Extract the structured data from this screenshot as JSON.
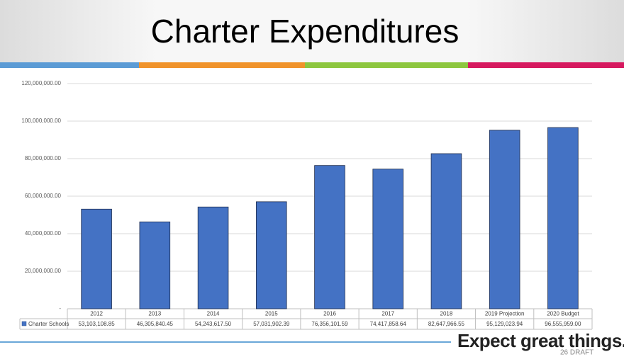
{
  "chart_data": {
    "type": "bar",
    "title": "Charter Expenditures",
    "categories": [
      "2012",
      "2013",
      "2014",
      "2015",
      "2016",
      "2017",
      "2018",
      "2019 Projection",
      "2020 Budget"
    ],
    "series": [
      {
        "name": "Charter Schools",
        "color": "#4472c4",
        "values": [
          53103108.85,
          46305840.45,
          54243617.5,
          57031902.39,
          76356101.59,
          74417858.64,
          82647966.55,
          95129023.94,
          96555959.0
        ],
        "value_labels": [
          "53,103,108.85",
          "46,305,840.45",
          "54,243,617.50",
          "57,031,902.39",
          "76,356,101.59",
          "74,417,858.64",
          "82,647,966.55",
          "95,129,023.94",
          "96,555,959.00"
        ]
      }
    ],
    "ylim": [
      0,
      120000000
    ],
    "yticks": [
      {
        "value": 0,
        "label": "-"
      },
      {
        "value": 20000000,
        "label": "20,000,000.00"
      },
      {
        "value": 40000000,
        "label": "40,000,000.00"
      },
      {
        "value": 60000000,
        "label": "60,000,000.00"
      },
      {
        "value": 80000000,
        "label": "80,000,000.00"
      },
      {
        "value": 100000000,
        "label": "100,000,000.00"
      },
      {
        "value": 120000000,
        "label": "120,000,000.00"
      }
    ],
    "grid": true
  },
  "footer": {
    "slogan": "Expect great things.",
    "page": "26 DRAFT"
  }
}
